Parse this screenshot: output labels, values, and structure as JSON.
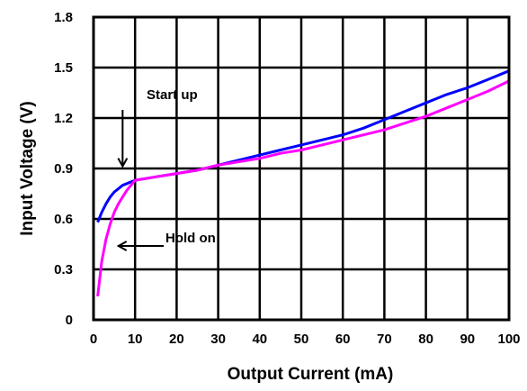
{
  "chart_data": {
    "type": "line",
    "title": "",
    "xlabel": "Output Current (mA)",
    "ylabel": "Input Voltage (V)",
    "xlim": [
      0,
      100
    ],
    "ylim": [
      0,
      1.8
    ],
    "x_ticks": [
      "0",
      "10",
      "20",
      "30",
      "40",
      "50",
      "60",
      "70",
      "80",
      "90",
      "100"
    ],
    "y_ticks": [
      "0",
      "0.3",
      "0.6",
      "0.9",
      "1.2",
      "1.5",
      "1.8"
    ],
    "grid": true,
    "series": [
      {
        "color": "#0000ff",
        "x": [
          1,
          2,
          3,
          4,
          5,
          6,
          7,
          8,
          9,
          10,
          15,
          20,
          25,
          30,
          35,
          40,
          45,
          50,
          55,
          60,
          65,
          70,
          75,
          80,
          85,
          90,
          95,
          100
        ],
        "y": [
          0.58,
          0.64,
          0.69,
          0.73,
          0.76,
          0.78,
          0.8,
          0.81,
          0.82,
          0.83,
          0.85,
          0.87,
          0.89,
          0.92,
          0.95,
          0.98,
          1.01,
          1.04,
          1.07,
          1.1,
          1.14,
          1.19,
          1.24,
          1.29,
          1.34,
          1.38,
          1.43,
          1.48
        ]
      },
      {
        "color": "#ff00ff",
        "x": [
          1,
          2,
          3,
          4,
          5,
          6,
          7,
          8,
          9,
          10,
          15,
          20,
          25,
          30,
          35,
          40,
          45,
          50,
          55,
          60,
          65,
          70,
          75,
          80,
          85,
          90,
          95,
          100
        ],
        "y": [
          0.14,
          0.35,
          0.48,
          0.57,
          0.64,
          0.69,
          0.73,
          0.77,
          0.8,
          0.83,
          0.85,
          0.87,
          0.89,
          0.92,
          0.94,
          0.96,
          0.99,
          1.01,
          1.04,
          1.07,
          1.1,
          1.13,
          1.17,
          1.21,
          1.26,
          1.31,
          1.36,
          1.42
        ]
      }
    ],
    "annotations": [
      {
        "text": "Start up",
        "arrow": "down",
        "target_x": 7,
        "target_y": 0.87
      },
      {
        "text": "Hold on",
        "arrow": "left",
        "target_x": 6,
        "target_y": 0.45
      }
    ]
  }
}
